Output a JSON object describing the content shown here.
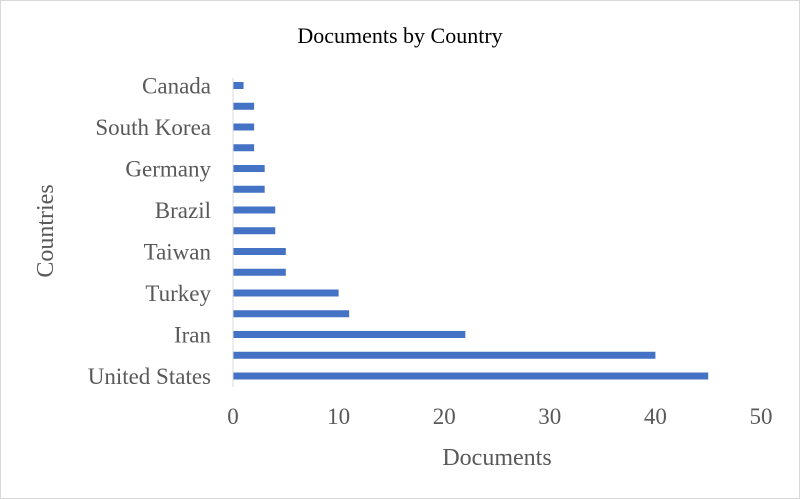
{
  "chart_data": {
    "type": "bar",
    "orientation": "horizontal",
    "title": "Documents by Country",
    "xlabel": "Documents",
    "ylabel": "Countries",
    "xlim": [
      0,
      50
    ],
    "x_ticks": [
      0,
      10,
      20,
      30,
      40,
      50
    ],
    "grid": false,
    "legend": "none",
    "bar_color": "#4472c4",
    "categories": [
      "United States",
      "",
      "Iran",
      "",
      "Turkey",
      "",
      "Taiwan",
      "",
      "Brazil",
      "",
      "Germany",
      "",
      "South Korea",
      "",
      "Canada"
    ],
    "values": [
      45,
      40,
      22,
      11,
      10,
      5,
      5,
      4,
      4,
      3,
      3,
      2,
      2,
      2,
      1
    ]
  }
}
